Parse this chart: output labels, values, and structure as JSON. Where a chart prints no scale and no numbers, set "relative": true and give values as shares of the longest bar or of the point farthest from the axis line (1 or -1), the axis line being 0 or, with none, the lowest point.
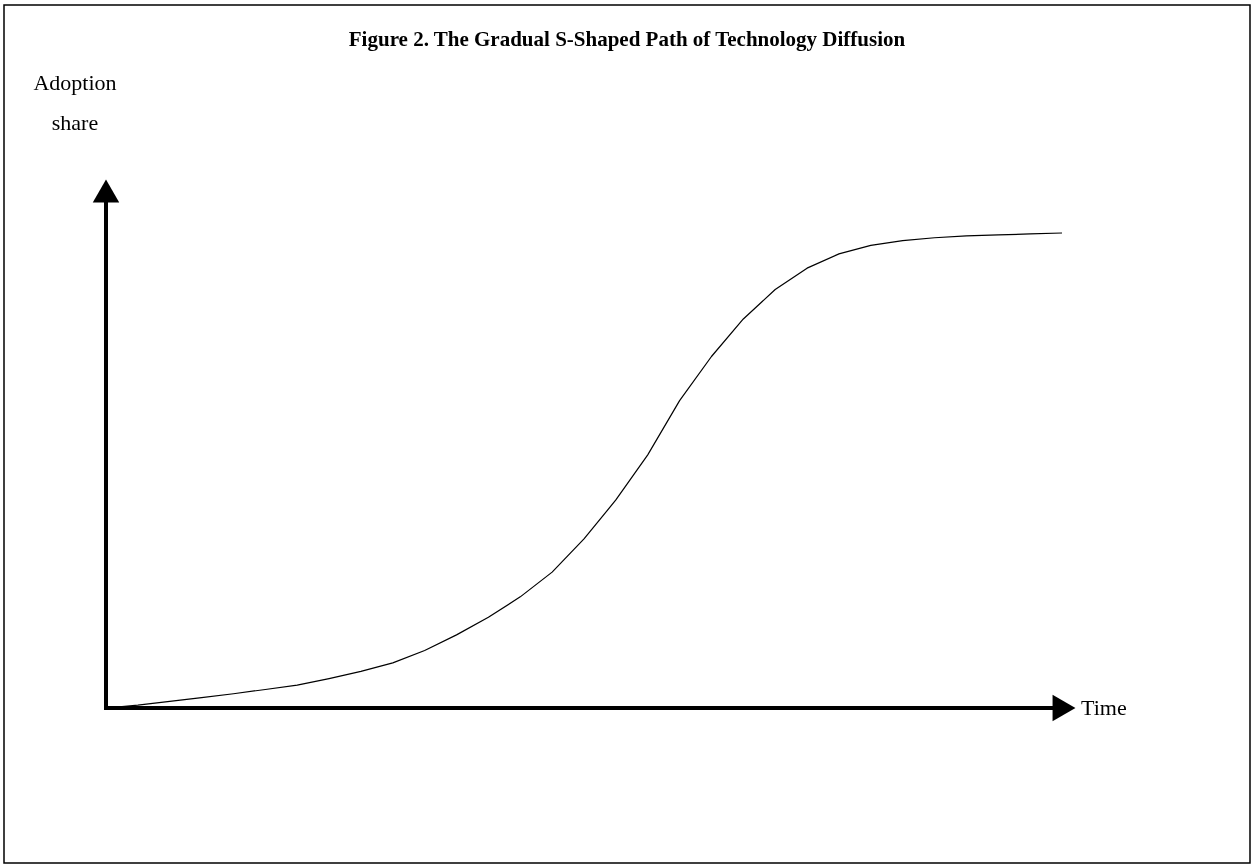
{
  "chart_data": {
    "type": "line",
    "title": "Figure 2.  The Gradual S-Shaped Path of Technology Diffusion",
    "xlabel": "Time",
    "ylabel": "Adoption share",
    "relative": true,
    "line_style": "solid",
    "categories": [
      null,
      null,
      null,
      null,
      null,
      null,
      null,
      null,
      null,
      null,
      null,
      null,
      null,
      null,
      null,
      null,
      null,
      null,
      null,
      null,
      null,
      null,
      null,
      null,
      null,
      null,
      null,
      null,
      null,
      null,
      null
    ],
    "series": [
      {
        "color": "#000000",
        "values": [
          0,
          0.006,
          0.014,
          0.022,
          0.03,
          0.039,
          0.048,
          0.062,
          0.077,
          0.095,
          0.121,
          0.154,
          0.191,
          0.234,
          0.286,
          0.356,
          0.438,
          0.533,
          0.647,
          0.74,
          0.819,
          0.881,
          0.926,
          0.956,
          0.974,
          0.984,
          0.99,
          0.994,
          0.996,
          0.998,
          1.0
        ]
      }
    ]
  }
}
